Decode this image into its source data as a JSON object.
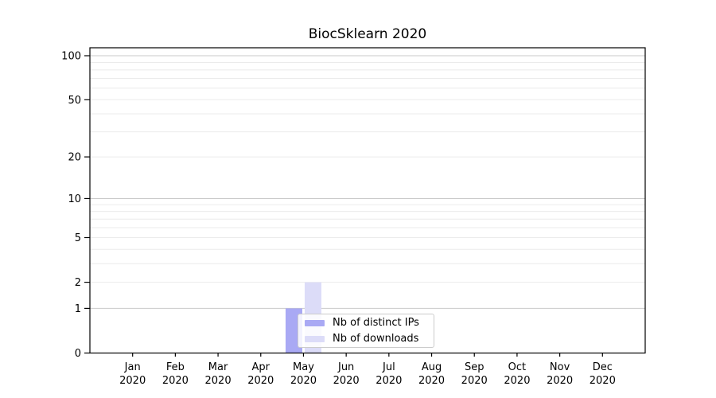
{
  "chart_data": {
    "type": "bar",
    "title": "BiocSklearn 2020",
    "categories": [
      {
        "month": "Jan",
        "year": "2020"
      },
      {
        "month": "Feb",
        "year": "2020"
      },
      {
        "month": "Mar",
        "year": "2020"
      },
      {
        "month": "Apr",
        "year": "2020"
      },
      {
        "month": "May",
        "year": "2020"
      },
      {
        "month": "Jun",
        "year": "2020"
      },
      {
        "month": "Jul",
        "year": "2020"
      },
      {
        "month": "Aug",
        "year": "2020"
      },
      {
        "month": "Sep",
        "year": "2020"
      },
      {
        "month": "Oct",
        "year": "2020"
      },
      {
        "month": "Nov",
        "year": "2020"
      },
      {
        "month": "Dec",
        "year": "2020"
      }
    ],
    "series": [
      {
        "name": "Nb of distinct IPs",
        "color": "#a9a9f4",
        "values": [
          0,
          0,
          0,
          0,
          1,
          0,
          0,
          0,
          0,
          0,
          0,
          0
        ]
      },
      {
        "name": "Nb of downloads",
        "color": "#dcdcf8",
        "values": [
          0,
          0,
          0,
          0,
          2,
          0,
          0,
          0,
          0,
          0,
          0,
          0
        ]
      }
    ],
    "xlabel": "",
    "ylabel": "",
    "yscale": "log1p",
    "ylim": [
      0,
      114
    ],
    "yticks": [
      0,
      1,
      2,
      5,
      10,
      20,
      50,
      100
    ],
    "gridlines": {
      "major": [
        1,
        10,
        100
      ],
      "minor": [
        2,
        3,
        4,
        5,
        6,
        7,
        8,
        9,
        20,
        30,
        40,
        50,
        60,
        70,
        80,
        90
      ]
    },
    "grid": "horizontal",
    "axis_color": "#000000",
    "major_grid_color": "#c9c9c9",
    "minor_grid_color": "#ebebeb",
    "legend_position": "inside-bottom-center"
  }
}
